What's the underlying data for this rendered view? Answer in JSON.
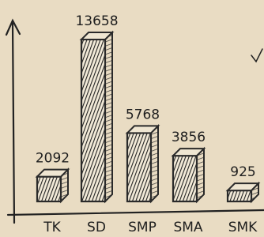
{
  "chart_data": {
    "type": "bar",
    "categories": [
      "TK",
      "SD",
      "SMP",
      "SMA",
      "SMK"
    ],
    "values": [
      2092,
      13658,
      5768,
      3856,
      925
    ],
    "color": "#2a2a2a"
  }
}
